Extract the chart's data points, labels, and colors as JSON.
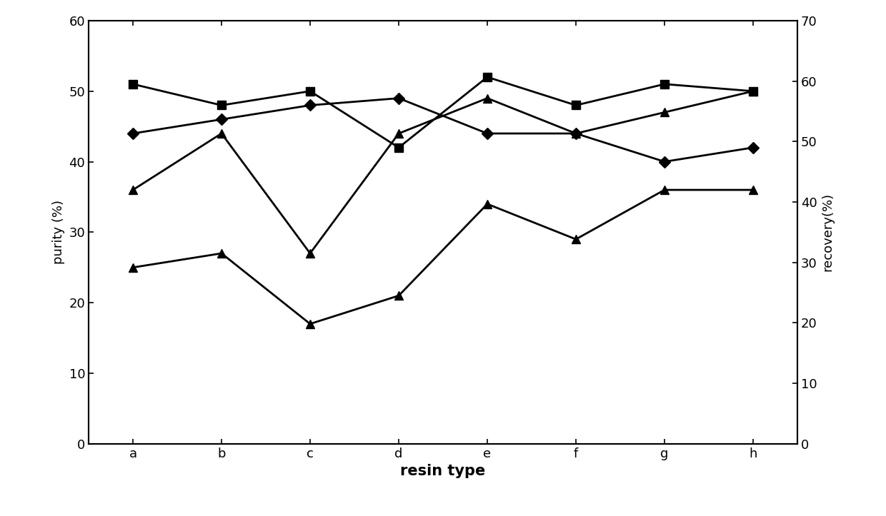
{
  "categories": [
    "a",
    "b",
    "c",
    "d",
    "e",
    "f",
    "g",
    "h"
  ],
  "series": [
    {
      "label": "square_series",
      "values": [
        51,
        48,
        50,
        42,
        52,
        48,
        51,
        50
      ],
      "marker": "s",
      "markersize": 9,
      "color": "#000000",
      "linewidth": 2.0
    },
    {
      "label": "diamond_series",
      "values": [
        44,
        46,
        48,
        49,
        44,
        44,
        40,
        42
      ],
      "marker": "D",
      "markersize": 8,
      "color": "#000000",
      "linewidth": 2.0
    },
    {
      "label": "triangle_upper_series",
      "values": [
        36,
        44,
        27,
        44,
        49,
        44,
        47,
        50
      ],
      "marker": "^",
      "markersize": 9,
      "color": "#000000",
      "linewidth": 2.0
    },
    {
      "label": "triangle_lower_series",
      "values": [
        25,
        27,
        17,
        21,
        34,
        29,
        36,
        36
      ],
      "marker": "^",
      "markersize": 9,
      "color": "#000000",
      "linewidth": 2.0
    }
  ],
  "xlabel": "resin type",
  "ylabel_left": "purity (%)",
  "ylabel_right": "recovery(%)",
  "ylim_left": [
    0,
    60
  ],
  "ylim_right": [
    0,
    70
  ],
  "yticks_left": [
    0,
    10,
    20,
    30,
    40,
    50,
    60
  ],
  "yticks_right": [
    0,
    10,
    20,
    30,
    40,
    50,
    60,
    70
  ],
  "background_color": "#ffffff",
  "xlabel_fontsize": 15,
  "ylabel_fontsize": 13,
  "tick_fontsize": 13
}
